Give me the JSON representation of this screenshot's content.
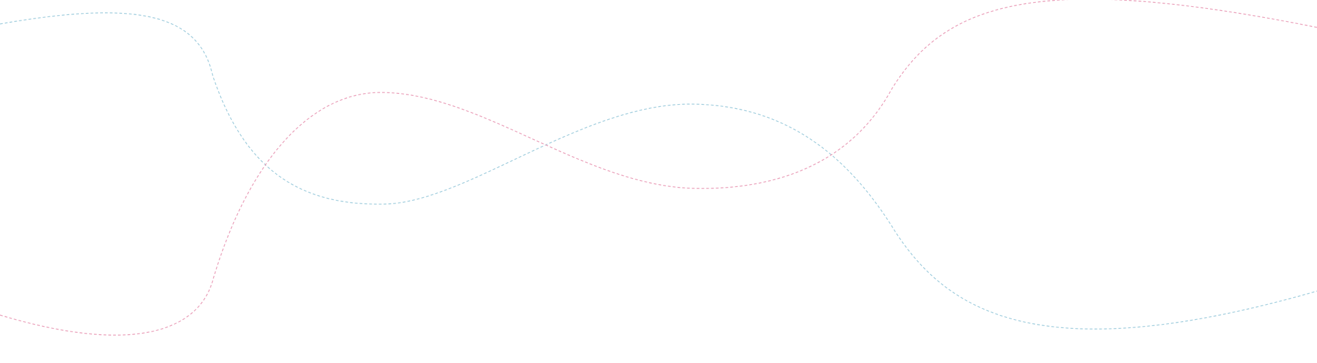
{
  "decoration": {
    "curves": [
      {
        "name": "blue-wave",
        "color": "#9ccbdc"
      },
      {
        "name": "pink-wave",
        "color": "#e99bb6"
      }
    ]
  }
}
